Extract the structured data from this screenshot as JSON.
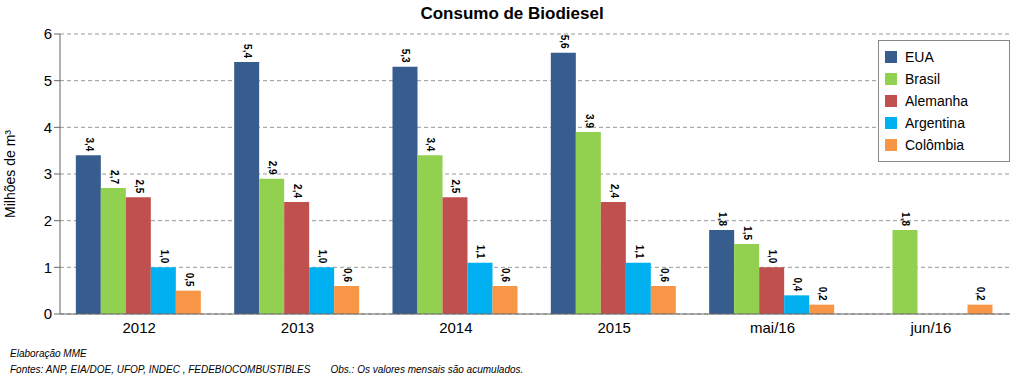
{
  "chart_data": {
    "type": "bar",
    "title": "Consumo de Biodiesel",
    "y_label": "Milhões de m³",
    "categories": [
      "2012",
      "2013",
      "2014",
      "2015",
      "mai/16",
      "jun/16"
    ],
    "series": [
      {
        "name": "EUA",
        "color": "#375d8f",
        "values": [
          3.4,
          5.4,
          5.3,
          5.6,
          1.8,
          null
        ],
        "value_labels": [
          "3,4",
          "5,4",
          "5,3",
          "5,6",
          "1,8",
          null
        ]
      },
      {
        "name": "Brasil",
        "color": "#92d050",
        "values": [
          2.7,
          2.9,
          3.4,
          3.9,
          1.5,
          1.8
        ],
        "value_labels": [
          "2,7",
          "2,9",
          "3,4",
          "3,9",
          "1,5",
          "1,8"
        ]
      },
      {
        "name": "Alemanha",
        "color": "#c0504d",
        "values": [
          2.5,
          2.4,
          2.5,
          2.4,
          1.0,
          null
        ],
        "value_labels": [
          "2,5",
          "2,4",
          "2,5",
          "2,4",
          "1,0",
          null
        ]
      },
      {
        "name": "Argentina",
        "color": "#00b0f0",
        "values": [
          1.0,
          1.0,
          1.1,
          1.1,
          0.4,
          null
        ],
        "value_labels": [
          "1,0",
          "1,0",
          "1,1",
          "1,1",
          "0,4",
          null
        ]
      },
      {
        "name": "Colômbia",
        "color": "#f79646",
        "values": [
          0.5,
          0.6,
          0.6,
          0.6,
          0.2,
          0.2
        ],
        "value_labels": [
          "0,5",
          "0,6",
          "0,6",
          "0,6",
          "0,2",
          "0,2"
        ]
      }
    ],
    "ylim": [
      0,
      6
    ],
    "yticks": [
      0,
      1,
      2,
      3,
      4,
      5,
      6
    ],
    "grid": true,
    "legend": "upper right",
    "data_labels": true,
    "annotations": [
      "Elaboração MME",
      "Fontes: ANP, EIA/DOE, UFOP, INDEC , FEDEBIOCOMBUSTIBLES",
      "Obs.: Os valores mensais são acumulados."
    ]
  }
}
